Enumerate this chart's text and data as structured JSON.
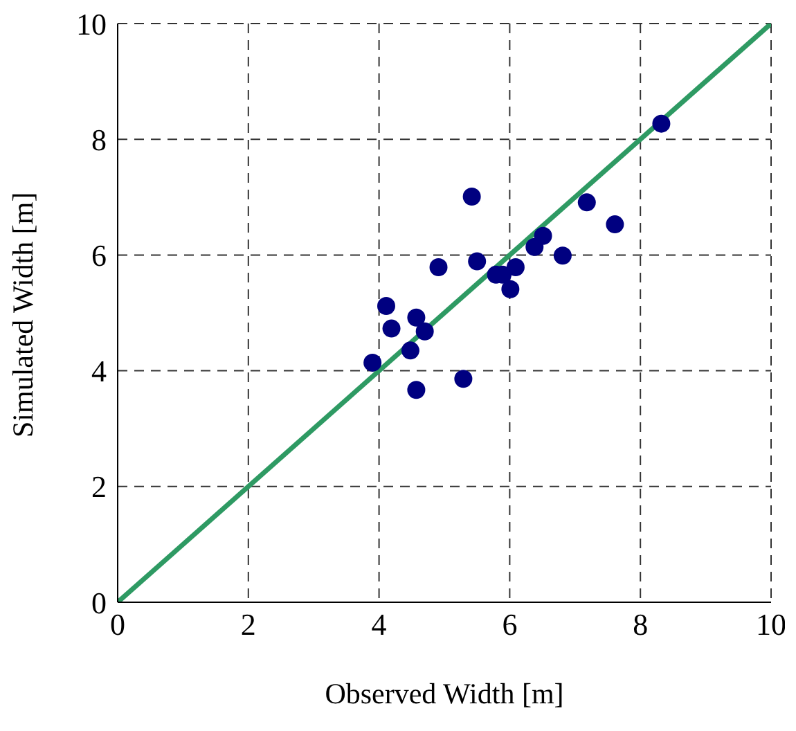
{
  "chart_data": {
    "type": "scatter",
    "xlabel": "Observed Width [m]",
    "ylabel": "Simulated Width [m]",
    "xlim": [
      0,
      10
    ],
    "ylim": [
      0,
      10
    ],
    "xticks": [
      0,
      2,
      4,
      6,
      8,
      10
    ],
    "yticks": [
      0,
      2,
      4,
      6,
      8,
      10
    ],
    "grid": true,
    "marker": "circle",
    "series": [
      {
        "color": "#000080",
        "x": [
          8.32,
          5.42,
          7.18,
          7.61,
          6.51,
          6.38,
          6.81,
          5.5,
          4.91,
          6.09,
          5.79,
          5.89,
          6.01,
          4.11,
          4.57,
          4.19,
          4.7,
          4.48,
          3.9,
          5.29,
          4.57
        ],
        "values": [
          8.27,
          7.01,
          6.91,
          6.53,
          6.33,
          6.14,
          5.99,
          5.89,
          5.79,
          5.79,
          5.66,
          5.66,
          5.41,
          5.12,
          4.92,
          4.73,
          4.68,
          4.35,
          4.14,
          3.86,
          3.67
        ]
      },
      {
        "type": "line",
        "color": "#2e9a63",
        "marker": "none",
        "x": [
          0,
          10
        ],
        "values": [
          0,
          10
        ]
      }
    ]
  }
}
